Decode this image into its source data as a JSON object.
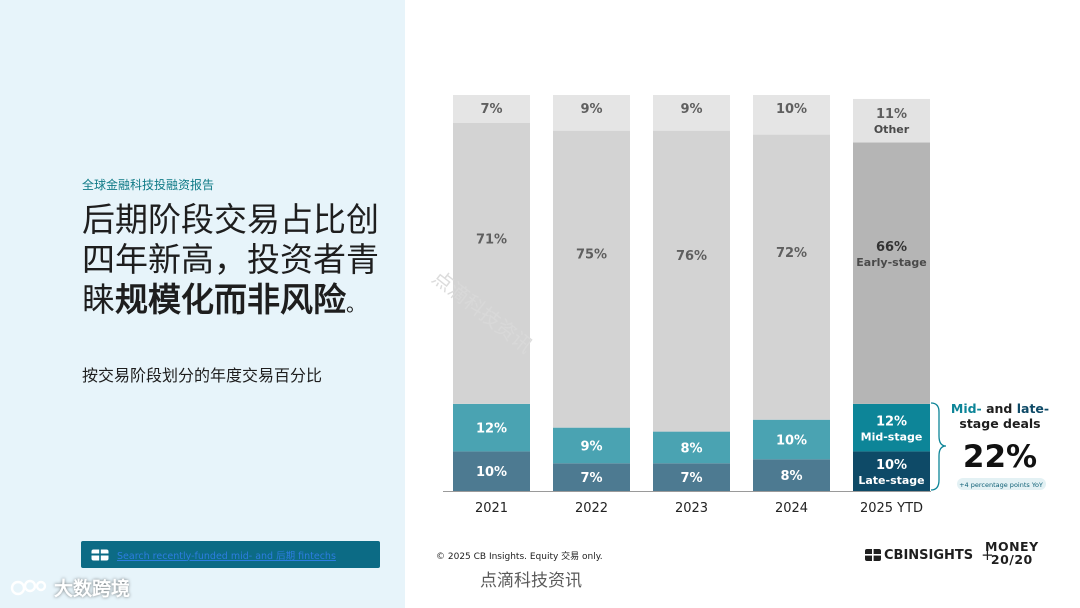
{
  "left": {
    "report_tag": "全球金融科技投融资报告",
    "headline_normal": "后期阶段交易占比创四年新高，投资者青睐",
    "headline_bold": "规模化而非风险",
    "headline_end": "。",
    "subtitle": "按交易阶段划分的年度交易百分比",
    "search_label": "Search recently-funded mid- and 后期 fintechs",
    "brand": "大数跨境"
  },
  "footer": {
    "copyright": "© 2025 CB Insights. Equity 交易 only.",
    "watermark": "点滴科技资讯",
    "cbi_logo": "CBINSIGHTS",
    "plus": "+",
    "money_line1": "MONEY",
    "money_line2": "20/20"
  },
  "callout": {
    "title_a": "Mid-",
    "title_b": " and ",
    "title_c": "late-",
    "title_d": "stage deals",
    "value": "22%",
    "note": "+4 percentage points YoY"
  },
  "colors": {
    "late": "#4d7a91",
    "mid": "#4aa3b2",
    "early": "#d3d3d3",
    "other": "#e5e5e5",
    "late_hl": "#0e4a67",
    "mid_hl": "#0d8598",
    "early_hl": "#b5b5b5",
    "other_hl": "#e3e3e3",
    "accent": "#0d8598"
  },
  "chart_data": {
    "type": "bar",
    "stacked": true,
    "normalized_percent": true,
    "categories": [
      "2021",
      "2022",
      "2023",
      "2024",
      "2025 YTD"
    ],
    "series": [
      {
        "name": "Late-stage",
        "values": [
          10,
          7,
          7,
          8,
          10
        ]
      },
      {
        "name": "Mid-stage",
        "values": [
          12,
          9,
          8,
          10,
          12
        ]
      },
      {
        "name": "Early-stage",
        "values": [
          71,
          75,
          76,
          72,
          66
        ]
      },
      {
        "name": "Other",
        "values": [
          7,
          9,
          9,
          10,
          11
        ]
      }
    ],
    "data_labels": [
      [
        "10%",
        "12%",
        "71%",
        "7%"
      ],
      [
        "7%",
        "9%",
        "75%",
        "9%"
      ],
      [
        "7%",
        "8%",
        "76%",
        "9%"
      ],
      [
        "8%",
        "10%",
        "72%",
        "10%"
      ],
      [
        "10%",
        "12%",
        "66%",
        "11%"
      ]
    ],
    "ylim": [
      0,
      100
    ],
    "highlight_category": "2025 YTD",
    "highlight_labels": [
      "Late-stage",
      "Mid-stage",
      "Early-stage",
      "Other"
    ]
  }
}
